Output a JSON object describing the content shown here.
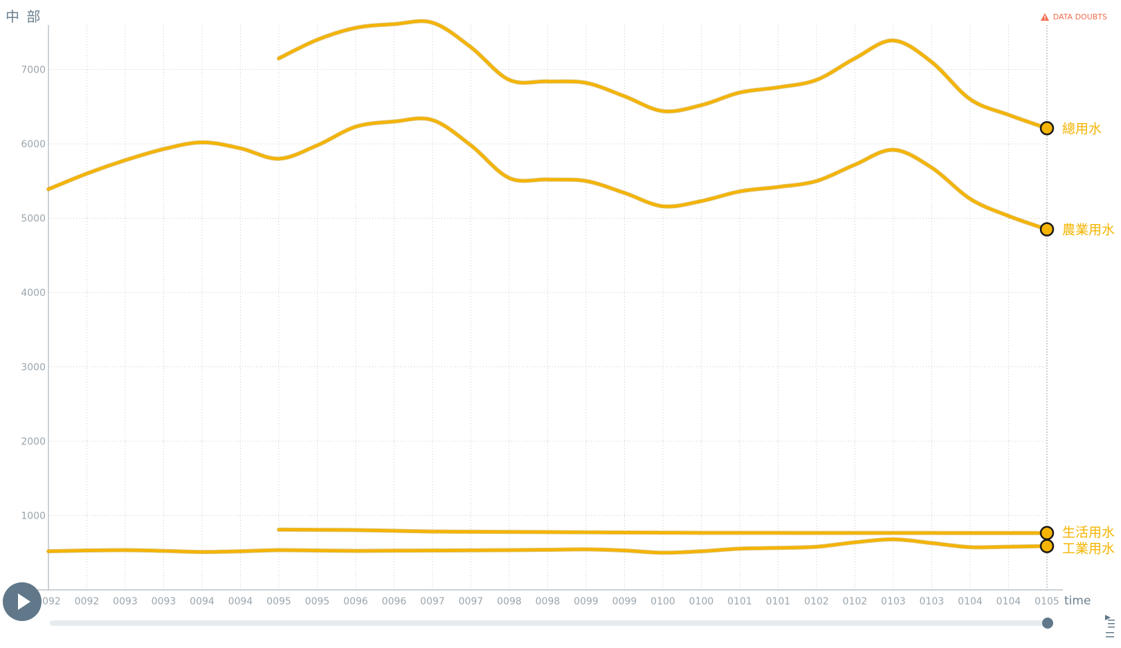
{
  "header": {
    "title": "中 部",
    "data_doubts_label": "DATA DOUBTS",
    "data_doubts_icon": "warning-triangle-icon"
  },
  "colors": {
    "series": "#f4b400",
    "marker_border": "#1a1a1a",
    "axis_text": "#9aa5ad",
    "grid": "#c8c8c8",
    "warning": "#f26c4f",
    "control": "#607889"
  },
  "controls": {
    "play_icon": "play-icon",
    "options_icon": "options-icon",
    "time_progress": 1.0
  },
  "chart_data": {
    "type": "line",
    "xlabel": "time",
    "ylabel": "",
    "ylim": [
      0,
      7600
    ],
    "yticks": [
      1000,
      2000,
      3000,
      4000,
      5000,
      6000,
      7000
    ],
    "x": [
      92,
      92.5,
      93,
      93.5,
      94,
      94.5,
      95,
      95.5,
      96,
      96.5,
      97,
      97.5,
      98,
      98.5,
      99,
      99.5,
      100,
      100.5,
      101,
      101.5,
      102,
      102.5,
      103,
      103.5,
      104,
      104.5,
      105
    ],
    "xtick_labels": [
      "0092",
      "0092",
      "0093",
      "0093",
      "0094",
      "0094",
      "0095",
      "0095",
      "0096",
      "0096",
      "0097",
      "0097",
      "0098",
      "0098",
      "0099",
      "0099",
      "0100",
      "0100",
      "0101",
      "0101",
      "0102",
      "0102",
      "0103",
      "0103",
      "0104",
      "0104",
      "0105"
    ],
    "grid": true,
    "series": [
      {
        "name": "總用水",
        "points": [
          [
            95,
            7150
          ],
          [
            95.5,
            7400
          ],
          [
            96,
            7560
          ],
          [
            96.5,
            7610
          ],
          [
            97,
            7630
          ],
          [
            97.5,
            7300
          ],
          [
            98,
            6860
          ],
          [
            98.5,
            6840
          ],
          [
            99,
            6820
          ],
          [
            99.5,
            6640
          ],
          [
            100,
            6440
          ],
          [
            100.5,
            6520
          ],
          [
            101,
            6690
          ],
          [
            101.5,
            6760
          ],
          [
            102,
            6860
          ],
          [
            102.5,
            7150
          ],
          [
            103,
            7390
          ],
          [
            103.5,
            7100
          ],
          [
            104,
            6600
          ],
          [
            104.5,
            6390
          ],
          [
            105,
            6210
          ]
        ]
      },
      {
        "name": "農業用水",
        "points": [
          [
            92,
            5390
          ],
          [
            92.5,
            5600
          ],
          [
            93,
            5780
          ],
          [
            93.5,
            5930
          ],
          [
            94,
            6020
          ],
          [
            94.5,
            5940
          ],
          [
            95,
            5800
          ],
          [
            95.5,
            5980
          ],
          [
            96,
            6230
          ],
          [
            96.5,
            6300
          ],
          [
            97,
            6320
          ],
          [
            97.5,
            5980
          ],
          [
            98,
            5540
          ],
          [
            98.5,
            5520
          ],
          [
            99,
            5500
          ],
          [
            99.5,
            5340
          ],
          [
            100,
            5160
          ],
          [
            100.5,
            5230
          ],
          [
            101,
            5360
          ],
          [
            101.5,
            5420
          ],
          [
            102,
            5500
          ],
          [
            102.5,
            5720
          ],
          [
            103,
            5920
          ],
          [
            103.5,
            5680
          ],
          [
            104,
            5260
          ],
          [
            104.5,
            5030
          ],
          [
            105,
            4850
          ]
        ]
      },
      {
        "name": "生活用水",
        "points": [
          [
            95,
            810
          ],
          [
            95.5,
            808
          ],
          [
            96,
            805
          ],
          [
            96.5,
            795
          ],
          [
            97,
            785
          ],
          [
            97.5,
            782
          ],
          [
            98,
            780
          ],
          [
            98.5,
            778
          ],
          [
            99,
            775
          ],
          [
            99.5,
            772
          ],
          [
            100,
            770
          ],
          [
            100.5,
            768
          ],
          [
            101,
            767
          ],
          [
            101.5,
            767
          ],
          [
            102,
            766
          ],
          [
            102.5,
            766
          ],
          [
            103,
            766
          ],
          [
            103.5,
            766
          ],
          [
            104,
            765
          ],
          [
            104.5,
            765
          ],
          [
            105,
            765
          ]
        ]
      },
      {
        "name": "工業用水",
        "points": [
          [
            92,
            520
          ],
          [
            92.5,
            530
          ],
          [
            93,
            535
          ],
          [
            93.5,
            525
          ],
          [
            94,
            510
          ],
          [
            94.5,
            520
          ],
          [
            95,
            535
          ],
          [
            95.5,
            530
          ],
          [
            96,
            525
          ],
          [
            96.5,
            528
          ],
          [
            97,
            530
          ],
          [
            97.5,
            532
          ],
          [
            98,
            535
          ],
          [
            98.5,
            540
          ],
          [
            99,
            545
          ],
          [
            99.5,
            530
          ],
          [
            100,
            500
          ],
          [
            100.5,
            520
          ],
          [
            101,
            555
          ],
          [
            101.5,
            565
          ],
          [
            102,
            580
          ],
          [
            102.5,
            640
          ],
          [
            103,
            680
          ],
          [
            103.5,
            630
          ],
          [
            104,
            575
          ],
          [
            104.5,
            580
          ],
          [
            105,
            590
          ]
        ]
      }
    ]
  }
}
